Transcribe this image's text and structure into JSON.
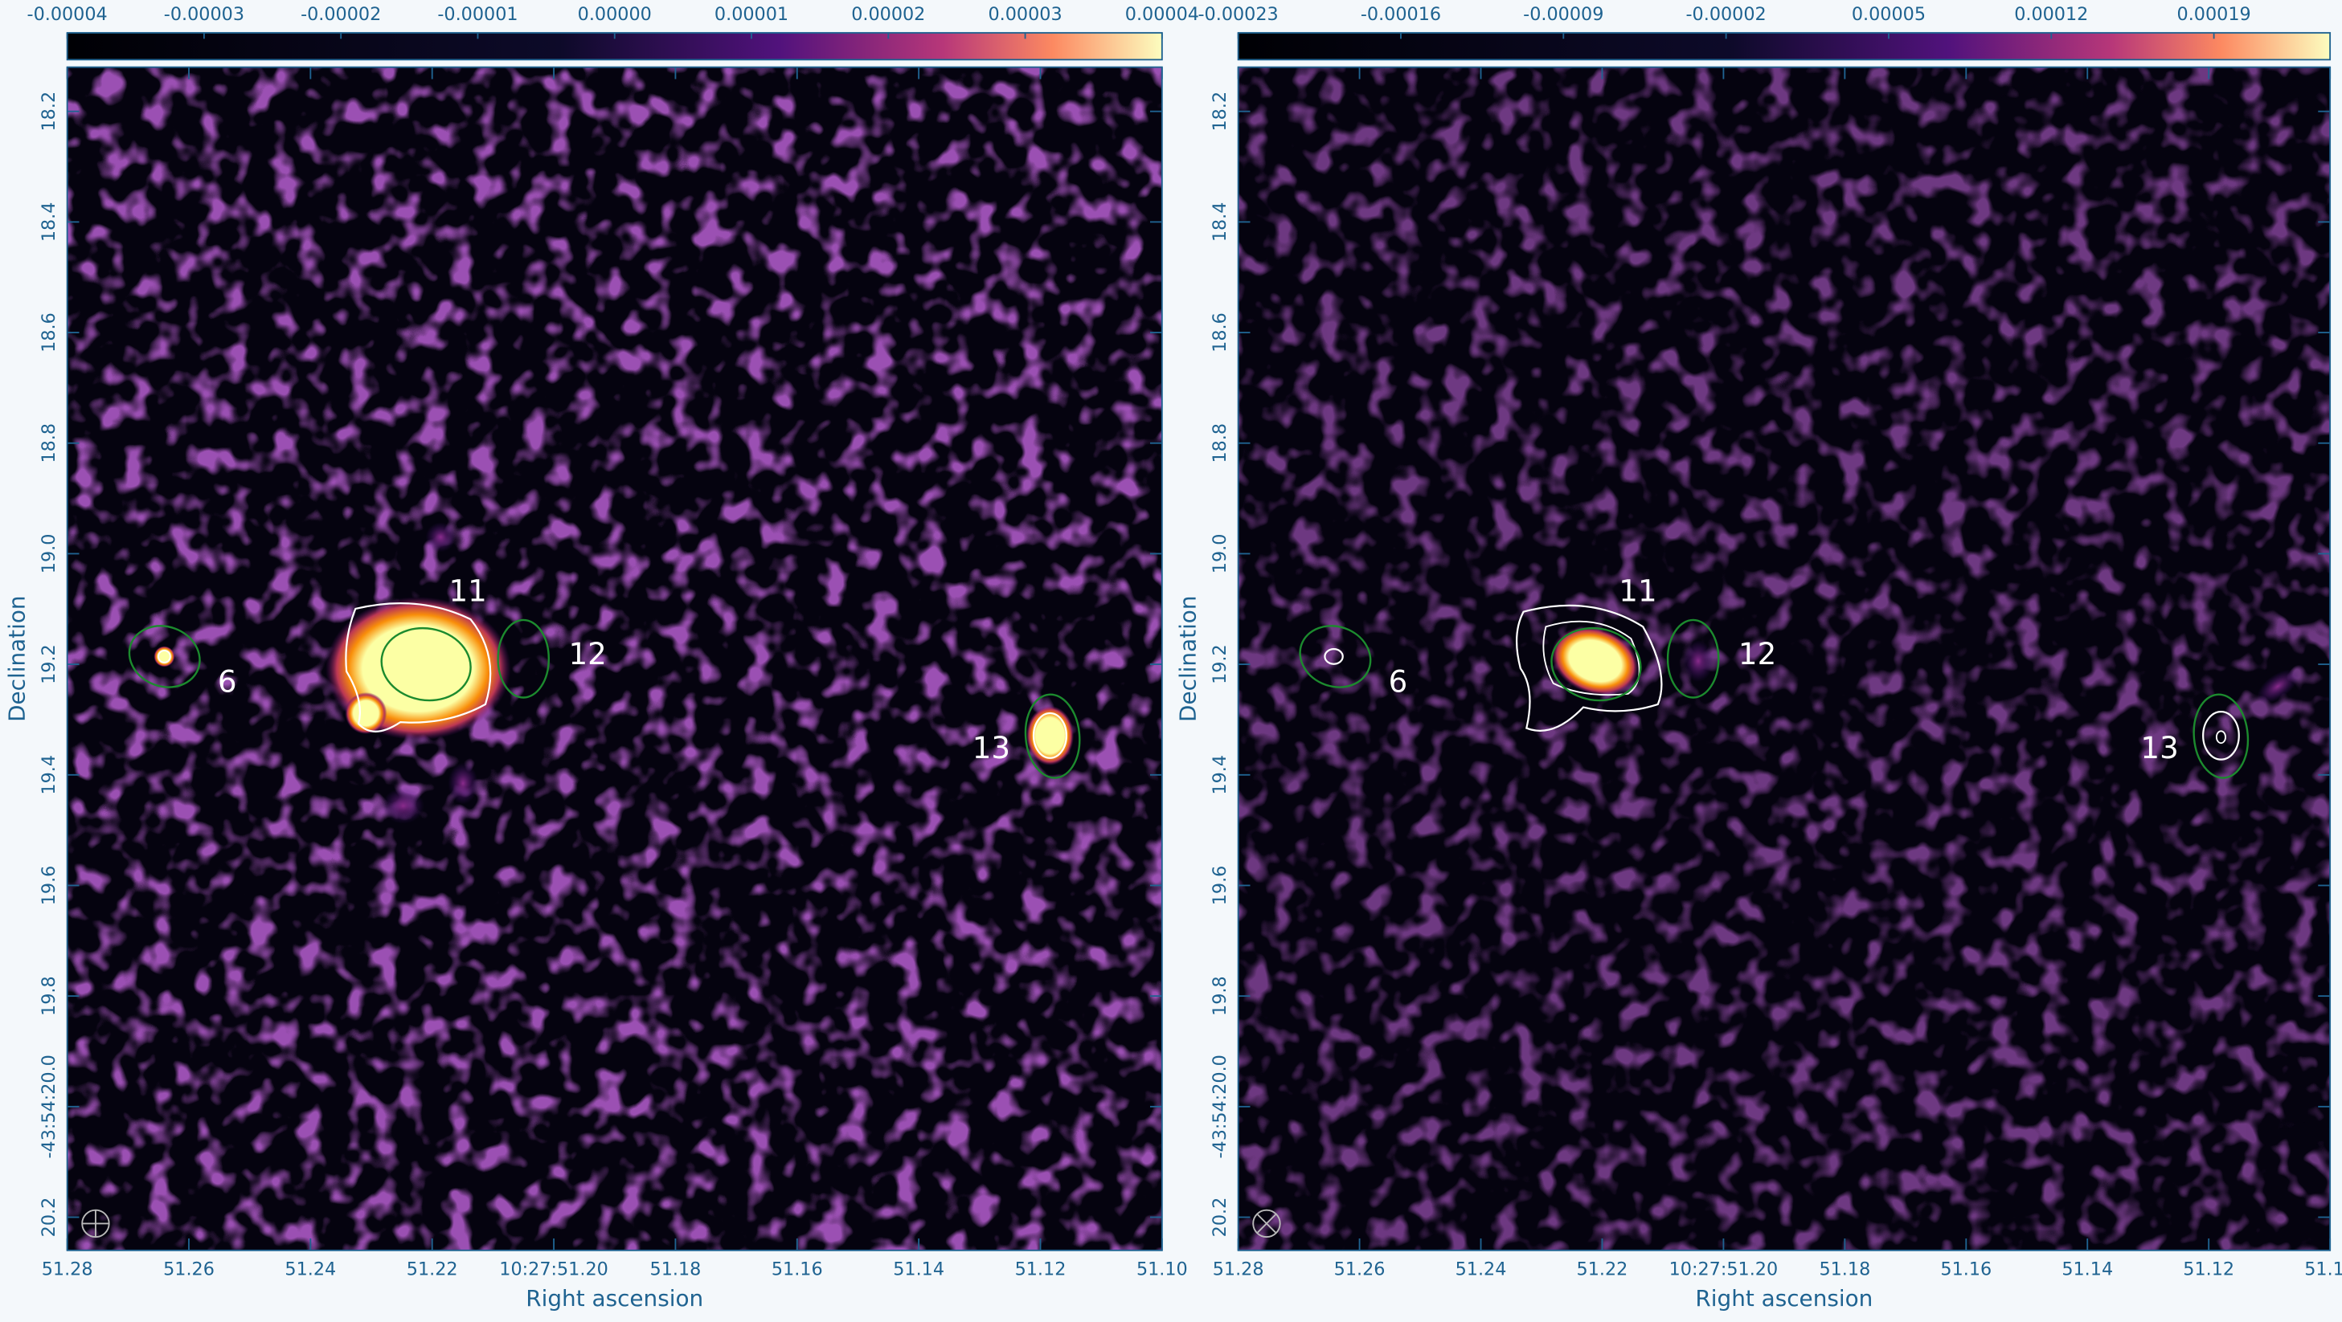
{
  "chart_data": [
    {
      "type": "image",
      "colormap": "magma",
      "xlabel": "Right ascension",
      "ylabel": "Declination",
      "xlim": [
        51.28,
        51.1
      ],
      "ylim": [
        20.26,
        18.12
      ],
      "xticks": [
        51.28,
        51.26,
        51.24,
        51.22,
        {
          "value": 51.2,
          "label": "10:27:51.20"
        },
        51.18,
        51.16,
        51.14,
        51.12,
        {
          "value": 51.1,
          "label": "51.10"
        }
      ],
      "yticks": [
        18.2,
        18.4,
        18.6,
        18.8,
        {
          "value": 19.0,
          "label": "19.0"
        },
        19.2,
        19.4,
        19.6,
        19.8,
        {
          "value": 20.0,
          "label": "-43:54:20.0"
        },
        20.2
      ],
      "colorbar": {
        "lim": [
          -4e-05,
          4e-05
        ],
        "ticks": [
          -4e-05,
          -3e-05,
          -2e-05,
          -1e-05,
          {
            "value": 0,
            "label": "0.00000"
          },
          1e-05,
          2e-05,
          3e-05,
          4e-05
        ]
      },
      "sources": [
        {
          "label": "6",
          "ra": 51.264,
          "dec": 19.186
        },
        {
          "label": "11",
          "ra": 51.221,
          "dec": 19.2
        },
        {
          "label": "12",
          "ra": 51.205,
          "dec": 19.19
        },
        {
          "label": "13",
          "ra": 51.118,
          "dec": 19.33
        }
      ]
    },
    {
      "type": "image",
      "colormap": "magma",
      "xlabel": "Right ascension",
      "ylabel": "Declination",
      "xlim": [
        51.28,
        51.1
      ],
      "ylim": [
        20.26,
        18.12
      ],
      "xticks": [
        51.28,
        51.26,
        51.24,
        51.22,
        {
          "value": 51.2,
          "label": "10:27:51.20"
        },
        51.18,
        51.16,
        51.14,
        51.12,
        {
          "value": 51.1,
          "label": "51.10"
        }
      ],
      "yticks": [
        18.2,
        18.4,
        18.6,
        18.8,
        {
          "value": 19.0,
          "label": "19.0"
        },
        19.2,
        19.4,
        19.6,
        19.8,
        {
          "value": 20.0,
          "label": "-43:54:20.0"
        },
        20.2
      ],
      "colorbar": {
        "lim": [
          -0.00023,
          0.00024
        ],
        "ticks": [
          -0.00023,
          -0.00016,
          -9e-05,
          -2e-05,
          5e-05,
          0.00012,
          0.00019
        ]
      },
      "sources": [
        {
          "label": "6",
          "ra": 51.264,
          "dec": 19.186
        },
        {
          "label": "11",
          "ra": 51.221,
          "dec": 19.2
        },
        {
          "label": "12",
          "ra": 51.205,
          "dec": 19.19
        },
        {
          "label": "13",
          "ra": 51.118,
          "dec": 19.33
        }
      ]
    }
  ]
}
